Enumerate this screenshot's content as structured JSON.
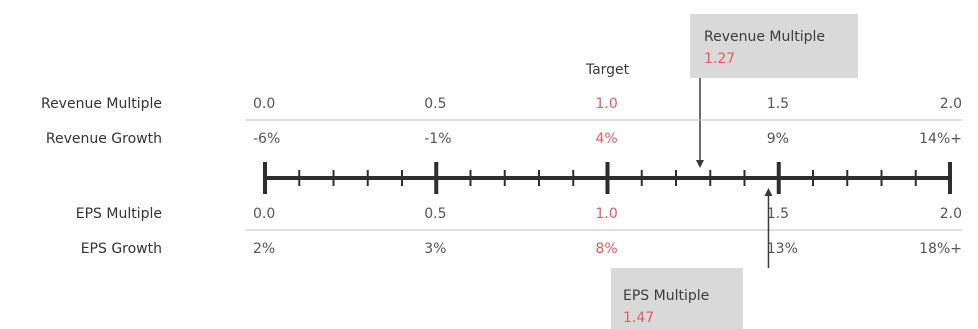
{
  "scale": {
    "rows": {
      "revenue_multiple": {
        "label": "Revenue Multiple",
        "values": [
          "0.0",
          "0.5",
          "1.0",
          "1.5",
          "2.0"
        ]
      },
      "revenue_growth": {
        "label": "Revenue Growth",
        "values": [
          "-6%",
          "-1%",
          "4%",
          "9%",
          "14%+"
        ]
      },
      "eps_multiple": {
        "label": "EPS Multiple",
        "values": [
          "0.0",
          "0.5",
          "1.0",
          "1.5",
          "2.0"
        ]
      },
      "eps_growth": {
        "label": "EPS Growth",
        "values": [
          "2%",
          "3%",
          "8%",
          "13%",
          "18%+"
        ]
      }
    },
    "target": {
      "label": "Target",
      "index": 2
    },
    "minor_ticks_per_segment": 4,
    "domain": [
      0.0,
      2.0
    ]
  },
  "callouts": {
    "revenue": {
      "title": "Revenue Multiple",
      "value": "1.27",
      "position": 1.27
    },
    "eps": {
      "title": "EPS Multiple",
      "value": "1.47",
      "position": 1.47
    }
  },
  "colors": {
    "highlight": "#e85a5a",
    "axis": "#2e2e2e",
    "rule": "#bdbdbd",
    "callout_bg": "#d9d9d9",
    "text": "#3a3a3a"
  }
}
